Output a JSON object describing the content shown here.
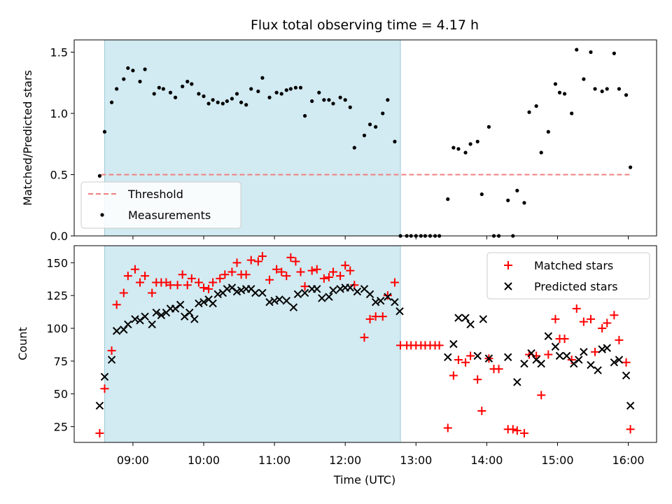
{
  "chart_data": {
    "title": "Flux total observing time = 4.17 h",
    "xlabel": "Time (UTC)",
    "x_ticks": [
      "09:00",
      "10:00",
      "11:00",
      "12:00",
      "13:00",
      "14:00",
      "15:00",
      "16:00"
    ],
    "x_range_hours": [
      8.17,
      16.4
    ],
    "shaded_span_hours": [
      8.6,
      12.78
    ],
    "shade_color": "#add8e6",
    "panels": [
      {
        "type": "scatter",
        "ylabel": "Matched/Predicted stars",
        "ylim": [
          0,
          1.6
        ],
        "y_ticks": [
          0.0,
          0.5,
          1.0,
          1.5
        ],
        "y_tick_labels": [
          "0.0",
          "0.5",
          "1.0",
          "1.5"
        ],
        "legend_position": "lower-left",
        "threshold": {
          "name": "Threshold",
          "y": 0.5,
          "x_range": [
            8.55,
            16.05
          ],
          "color": "#f08080"
        },
        "series": [
          {
            "name": "Measurements",
            "color": "#000000",
            "x": [
              8.53,
              8.6,
              8.7,
              8.77,
              8.87,
              8.93,
              9.0,
              9.1,
              9.17,
              9.3,
              9.37,
              9.43,
              9.53,
              9.6,
              9.7,
              9.77,
              9.83,
              9.93,
              10.0,
              10.07,
              10.13,
              10.2,
              10.27,
              10.33,
              10.4,
              10.47,
              10.53,
              10.6,
              10.67,
              10.77,
              10.83,
              10.93,
              11.03,
              11.1,
              11.17,
              11.23,
              11.3,
              11.37,
              11.43,
              11.53,
              11.63,
              11.7,
              11.77,
              11.83,
              11.93,
              12.0,
              12.07,
              12.13,
              12.27,
              12.35,
              12.43,
              12.53,
              12.6,
              12.7,
              12.78,
              12.87,
              12.93,
              13.0,
              13.07,
              13.13,
              13.2,
              13.27,
              13.33,
              13.45,
              13.53,
              13.6,
              13.7,
              13.77,
              13.87,
              13.93,
              14.03,
              14.1,
              14.17,
              14.3,
              14.37,
              14.43,
              14.53,
              14.6,
              14.7,
              14.77,
              14.87,
              14.97,
              15.03,
              15.1,
              15.2,
              15.27,
              15.37,
              15.47,
              15.53,
              15.63,
              15.7,
              15.8,
              15.87,
              15.97,
              16.03
            ],
            "y": [
              0.49,
              0.85,
              1.09,
              1.2,
              1.28,
              1.37,
              1.35,
              1.26,
              1.36,
              1.16,
              1.21,
              1.2,
              1.17,
              1.13,
              1.22,
              1.26,
              1.24,
              1.16,
              1.14,
              1.08,
              1.11,
              1.09,
              1.08,
              1.1,
              1.12,
              1.16,
              1.09,
              1.07,
              1.2,
              1.18,
              1.29,
              1.13,
              1.17,
              1.16,
              1.19,
              1.2,
              1.21,
              1.21,
              0.98,
              1.1,
              1.17,
              1.11,
              1.11,
              1.08,
              1.13,
              1.11,
              1.05,
              0.72,
              0.82,
              0.91,
              0.89,
              1.0,
              1.11,
              0.77,
              0.0,
              0.0,
              0.0,
              0.0,
              0.0,
              0.0,
              0.0,
              0.0,
              0.0,
              0.3,
              0.72,
              0.71,
              0.68,
              0.75,
              0.77,
              0.34,
              0.89,
              0.0,
              0.0,
              0.29,
              0.0,
              0.37,
              0.27,
              1.01,
              1.06,
              0.68,
              0.85,
              1.24,
              1.17,
              1.16,
              1.0,
              1.52,
              1.28,
              1.5,
              1.2,
              1.18,
              1.2,
              1.49,
              1.2,
              1.15,
              0.56
            ]
          }
        ]
      },
      {
        "type": "scatter",
        "ylabel": "Count",
        "ylim": [
          13,
          163
        ],
        "y_ticks": [
          25,
          50,
          75,
          100,
          125,
          150
        ],
        "y_tick_labels": [
          "25",
          "50",
          "75",
          "100",
          "125",
          "150"
        ],
        "legend_position": "top-right",
        "series": [
          {
            "name": "Matched stars",
            "color": "#ff0000",
            "marker": "plus",
            "x": [
              8.53,
              8.6,
              8.7,
              8.77,
              8.87,
              8.93,
              9.03,
              9.1,
              9.17,
              9.27,
              9.33,
              9.4,
              9.47,
              9.53,
              9.63,
              9.7,
              9.77,
              9.83,
              9.93,
              10.0,
              10.07,
              10.13,
              10.23,
              10.3,
              10.4,
              10.47,
              10.53,
              10.6,
              10.67,
              10.77,
              10.83,
              10.93,
              11.03,
              11.1,
              11.17,
              11.23,
              11.3,
              11.37,
              11.43,
              11.53,
              11.6,
              11.7,
              11.77,
              11.83,
              11.93,
              12.0,
              12.07,
              12.13,
              12.27,
              12.35,
              12.43,
              12.53,
              12.6,
              12.7,
              12.78,
              12.87,
              12.93,
              13.0,
              13.07,
              13.13,
              13.2,
              13.27,
              13.33,
              13.45,
              13.53,
              13.6,
              13.7,
              13.77,
              13.87,
              13.93,
              14.03,
              14.1,
              14.17,
              14.3,
              14.37,
              14.43,
              14.53,
              14.6,
              14.7,
              14.77,
              14.87,
              14.97,
              15.03,
              15.1,
              15.2,
              15.27,
              15.37,
              15.47,
              15.53,
              15.63,
              15.7,
              15.8,
              15.87,
              15.97,
              16.03
            ],
            "y": [
              20,
              54,
              83,
              118,
              127,
              140,
              145,
              135,
              140,
              127,
              135,
              135,
              135,
              133,
              133,
              141,
              133,
              138,
              135,
              131,
              130,
              135,
              138,
              141,
              143,
              150,
              141,
              141,
              152,
              151,
              155,
              137,
              145,
              143,
              140,
              154,
              151,
              143,
              132,
              144,
              145,
              138,
              139,
              143,
              140,
              148,
              144,
              133,
              93,
              107,
              109,
              109,
              125,
              135,
              87,
              87,
              87,
              87,
              87,
              87,
              87,
              87,
              87,
              24,
              64,
              76,
              74,
              79,
              61,
              37,
              77,
              69,
              69,
              23,
              23,
              22,
              20,
              80,
              79,
              49,
              80,
              107,
              92,
              92,
              76,
              115,
              105,
              107,
              82,
              100,
              104,
              110,
              91,
              74,
              23
            ]
          },
          {
            "name": "Predicted stars",
            "color": "#000000",
            "marker": "x",
            "x": [
              8.53,
              8.6,
              8.7,
              8.77,
              8.87,
              8.93,
              9.03,
              9.1,
              9.17,
              9.27,
              9.33,
              9.4,
              9.47,
              9.53,
              9.6,
              9.67,
              9.73,
              9.8,
              9.87,
              9.93,
              10.0,
              10.07,
              10.13,
              10.2,
              10.27,
              10.33,
              10.4,
              10.47,
              10.53,
              10.6,
              10.67,
              10.73,
              10.83,
              10.93,
              11.0,
              11.07,
              11.17,
              11.27,
              11.33,
              11.43,
              11.53,
              11.6,
              11.67,
              11.77,
              11.83,
              11.93,
              12.0,
              12.07,
              12.17,
              12.27,
              12.35,
              12.43,
              12.5,
              12.6,
              12.7,
              12.77,
              13.45,
              13.53,
              13.6,
              13.7,
              13.77,
              13.87,
              13.95,
              14.03,
              14.3,
              14.43,
              14.53,
              14.63,
              14.7,
              14.77,
              14.87,
              14.97,
              15.03,
              15.13,
              15.23,
              15.3,
              15.37,
              15.47,
              15.57,
              15.63,
              15.7,
              15.8,
              15.87,
              15.97,
              16.03
            ],
            "y": [
              41,
              63,
              76,
              98,
              99,
              103,
              107,
              106,
              109,
              103,
              112,
              110,
              112,
              115,
              115,
              118,
              109,
              112,
              107,
              119,
              120,
              122,
              119,
              126,
              127,
              130,
              131,
              128,
              129,
              130,
              130,
              127,
              127,
              120,
              121,
              122,
              121,
              116,
              126,
              127,
              130,
              130,
              123,
              124,
              129,
              130,
              131,
              131,
              128,
              130,
              126,
              120,
              121,
              124,
              120,
              113,
              78,
              88,
              108,
              108,
              103,
              79,
              107,
              77,
              78,
              59,
              73,
              81,
              76,
              73,
              94,
              86,
              79,
              79,
              73,
              76,
              82,
              72,
              68,
              84,
              85,
              74,
              76,
              64,
              41
            ]
          }
        ]
      }
    ]
  }
}
